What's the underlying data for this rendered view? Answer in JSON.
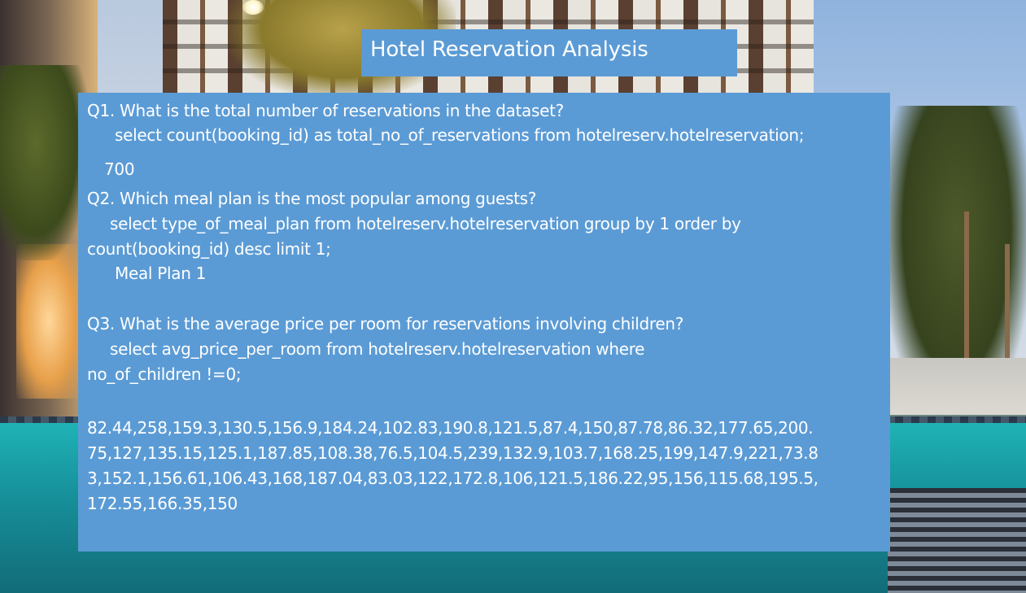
{
  "title": "Hotel Reservation Analysis",
  "q1": {
    "question": "Q1. What is the total number of reservations in the dataset?",
    "query": "select count(booking_id) as total_no_of_reservations from hotelreserv.hotelreservation;",
    "answer": "700"
  },
  "q2": {
    "question": "Q2. Which meal plan is the most popular among guests?",
    "query_line1": "select type_of_meal_plan from hotelreserv.hotelreservation group by 1 order by",
    "query_line2": "count(booking_id) desc limit 1;",
    "answer": "Meal Plan 1"
  },
  "q3": {
    "question": "Q3. What is the average price per room for reservations involving children?",
    "query_line1": "select avg_price_per_room from hotelreserv.hotelreservation where",
    "query_line2": "no_of_children !=0;",
    "answer_lines": [
      "82.44,258,159.3,130.5,156.9,184.24,102.83,190.8,121.5,87.4,150,87.78,86.32,177.65,200.",
      "75,127,135.15,125.1,187.85,108.38,76.5,104.5,239,132.9,103.7,168.25,199,147.9,221,73.8",
      "3,152.1,156.61,106.43,168,187.04,83.03,122,172.8,106,121.5,186.22,95,156,115.68,195.5,",
      "172.55,166.35,150"
    ]
  },
  "colors": {
    "box_fill": "#5b9bd5",
    "text": "#ffffff"
  }
}
